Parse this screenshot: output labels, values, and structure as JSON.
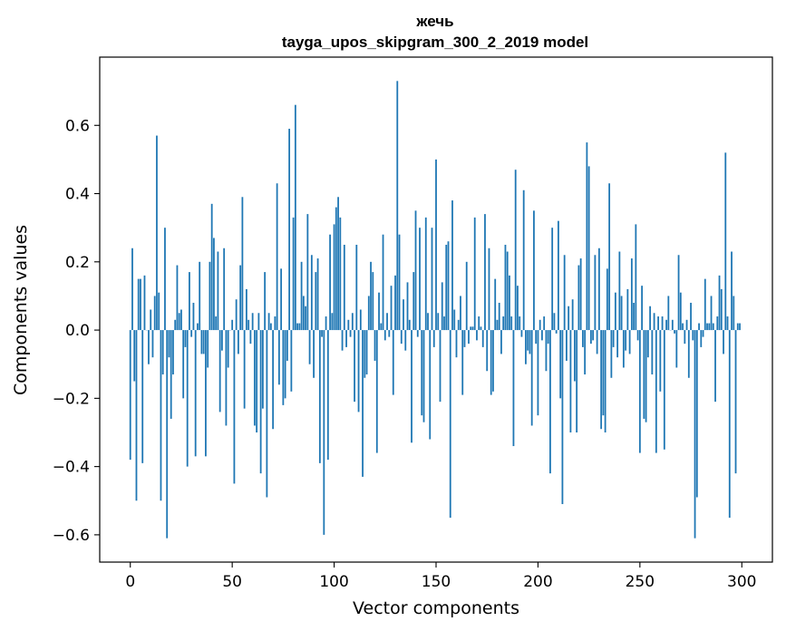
{
  "chart_data": {
    "type": "bar",
    "title": "жечь",
    "subtitle": "tayga_upos_skipgram_300_2_2019 model",
    "xlabel": "Vector components",
    "ylabel": "Components values",
    "xlim": [
      -15,
      315
    ],
    "ylim": [
      -0.68,
      0.8
    ],
    "xticks": [
      0,
      50,
      100,
      150,
      200,
      250,
      300
    ],
    "xtick_labels": [
      "0",
      "50",
      "100",
      "150",
      "200",
      "250",
      "300"
    ],
    "yticks": [
      -0.6,
      -0.4,
      -0.2,
      0.0,
      0.2,
      0.4,
      0.6
    ],
    "ytick_labels": [
      "−0.6",
      "−0.4",
      "−0.2",
      "0.0",
      "0.2",
      "0.4",
      "0.6"
    ],
    "grid": false,
    "color": "#1f77b4",
    "values": [
      -0.38,
      0.24,
      -0.15,
      -0.5,
      0.15,
      0.15,
      -0.39,
      0.16,
      0.0,
      -0.1,
      0.06,
      -0.08,
      0.1,
      0.57,
      0.11,
      -0.5,
      -0.13,
      0.3,
      -0.61,
      -0.08,
      -0.26,
      -0.13,
      0.03,
      0.19,
      0.05,
      0.06,
      -0.2,
      -0.05,
      -0.4,
      0.17,
      -0.02,
      0.08,
      -0.37,
      0.02,
      0.2,
      -0.07,
      -0.07,
      -0.37,
      -0.11,
      0.2,
      0.37,
      0.27,
      0.04,
      0.23,
      -0.24,
      -0.06,
      0.24,
      -0.28,
      -0.11,
      0.0,
      0.03,
      -0.45,
      0.09,
      -0.07,
      0.19,
      0.39,
      -0.23,
      0.12,
      0.03,
      -0.04,
      0.05,
      -0.28,
      -0.3,
      0.05,
      -0.42,
      -0.23,
      0.17,
      -0.49,
      0.05,
      0.02,
      -0.29,
      0.04,
      0.43,
      -0.16,
      0.18,
      -0.22,
      -0.2,
      -0.09,
      0.59,
      -0.18,
      0.33,
      0.66,
      0.02,
      0.02,
      0.2,
      0.1,
      0.07,
      0.34,
      -0.1,
      0.22,
      -0.14,
      0.17,
      0.21,
      -0.39,
      -0.02,
      -0.6,
      0.04,
      -0.38,
      0.28,
      0.05,
      0.31,
      0.36,
      0.39,
      0.33,
      -0.06,
      0.25,
      -0.05,
      0.03,
      -0.02,
      0.05,
      -0.21,
      0.25,
      -0.24,
      0.06,
      -0.43,
      -0.14,
      -0.13,
      0.1,
      0.2,
      0.17,
      -0.09,
      -0.36,
      0.11,
      0.02,
      0.28,
      -0.03,
      0.05,
      -0.02,
      0.13,
      -0.19,
      0.16,
      0.73,
      0.28,
      -0.04,
      0.09,
      -0.06,
      0.14,
      0.03,
      -0.33,
      0.17,
      0.35,
      -0.02,
      0.3,
      -0.25,
      -0.27,
      0.33,
      0.05,
      -0.32,
      0.3,
      -0.05,
      0.5,
      0.05,
      -0.21,
      0.14,
      0.04,
      0.25,
      0.26,
      -0.55,
      0.38,
      0.06,
      -0.08,
      0.03,
      0.1,
      -0.19,
      -0.05,
      0.2,
      -0.04,
      0.01,
      0.01,
      0.33,
      -0.03,
      0.04,
      0.01,
      -0.05,
      0.34,
      -0.12,
      0.24,
      -0.19,
      -0.18,
      0.15,
      0.03,
      0.08,
      -0.07,
      0.04,
      0.25,
      0.23,
      0.16,
      0.04,
      -0.34,
      0.47,
      0.13,
      0.04,
      -0.02,
      0.41,
      -0.1,
      -0.06,
      -0.07,
      -0.28,
      0.35,
      -0.04,
      -0.25,
      0.03,
      -0.03,
      0.04,
      -0.12,
      -0.04,
      -0.42,
      0.3,
      0.05,
      -0.01,
      0.32,
      -0.2,
      -0.51,
      0.22,
      -0.09,
      0.07,
      -0.3,
      0.09,
      -0.15,
      -0.3,
      0.19,
      0.21,
      -0.05,
      -0.13,
      0.55,
      0.48,
      -0.04,
      -0.03,
      0.22,
      -0.07,
      0.24,
      -0.29,
      -0.25,
      -0.3,
      0.18,
      0.43,
      -0.14,
      -0.05,
      0.11,
      -0.08,
      0.23,
      0.1,
      -0.11,
      -0.06,
      0.12,
      -0.07,
      0.21,
      0.08,
      0.31,
      -0.03,
      -0.36,
      0.13,
      -0.26,
      -0.27,
      -0.08,
      0.07,
      -0.13,
      0.05,
      -0.36,
      0.04,
      -0.18,
      0.04,
      -0.35,
      0.03,
      0.1,
      0.0,
      0.03,
      -0.01,
      -0.11,
      0.22,
      0.11,
      0.02,
      -0.04,
      0.03,
      -0.14,
      0.08,
      -0.03,
      -0.61,
      -0.49,
      0.02,
      -0.05,
      -0.02,
      0.15,
      0.02,
      0.02,
      0.1,
      0.02,
      -0.21,
      0.04,
      0.16,
      0.12,
      -0.07,
      0.52,
      0.04,
      -0.55,
      0.23,
      0.1,
      -0.42,
      0.02,
      0.02
    ]
  }
}
